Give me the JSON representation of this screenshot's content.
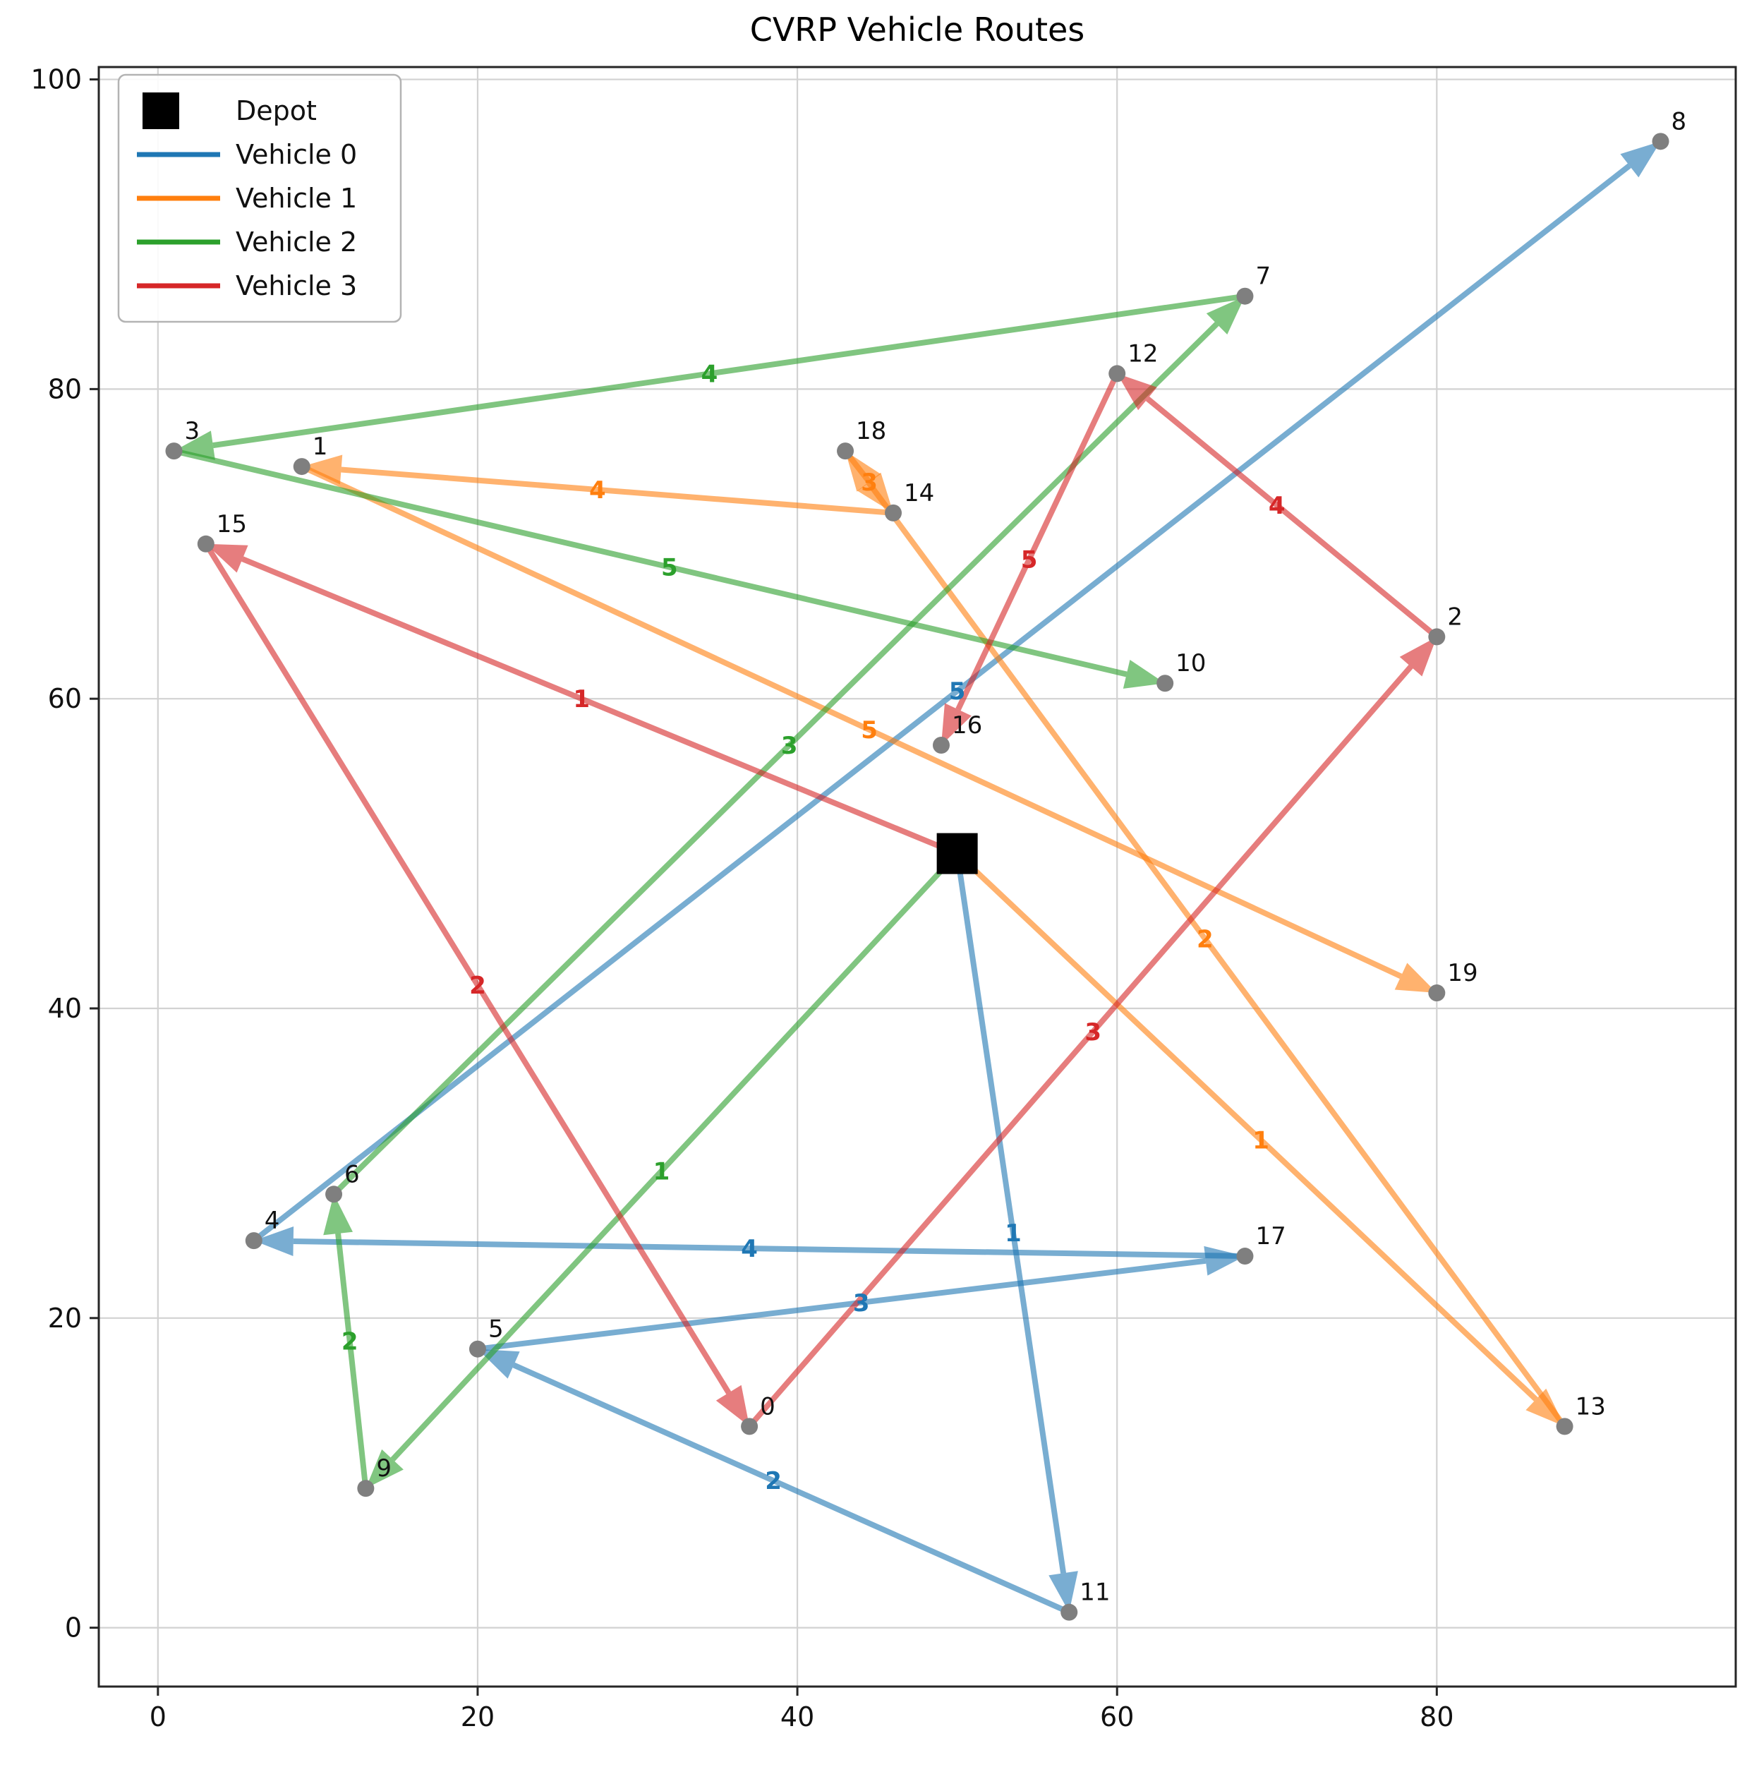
{
  "title": "CVRP Vehicle Routes",
  "legend": {
    "items": [
      {
        "label": "Depot",
        "color": "#000000",
        "marker": "square"
      },
      {
        "label": "Vehicle 0",
        "color": "#1f77b4",
        "marker": "line"
      },
      {
        "label": "Vehicle 1",
        "color": "#ff7f0e",
        "marker": "line"
      },
      {
        "label": "Vehicle 2",
        "color": "#2ca02c",
        "marker": "line"
      },
      {
        "label": "Vehicle 3",
        "color": "#d62728",
        "marker": "line"
      }
    ]
  },
  "chart_data": {
    "type": "scatter",
    "title": "CVRP Vehicle Routes",
    "xlabel": "",
    "ylabel": "",
    "xlim": [
      -3.7,
      98.7
    ],
    "ylim": [
      -3.8,
      100.8
    ],
    "x_ticks": [
      0,
      20,
      40,
      60,
      80
    ],
    "y_ticks": [
      0,
      20,
      40,
      60,
      80,
      100
    ],
    "grid": true,
    "grid_color": "#d2d2d2",
    "node_color": "#7f7f7f",
    "depot": {
      "label": "Depot",
      "x": 50,
      "y": 50,
      "color": "#000000"
    },
    "customers": [
      {
        "id": 0,
        "x": 37,
        "y": 13
      },
      {
        "id": 1,
        "x": 9,
        "y": 75
      },
      {
        "id": 2,
        "x": 80,
        "y": 64
      },
      {
        "id": 3,
        "x": 1,
        "y": 76
      },
      {
        "id": 4,
        "x": 6,
        "y": 25
      },
      {
        "id": 5,
        "x": 20,
        "y": 18
      },
      {
        "id": 6,
        "x": 11,
        "y": 28
      },
      {
        "id": 7,
        "x": 68,
        "y": 86
      },
      {
        "id": 8,
        "x": 94,
        "y": 96
      },
      {
        "id": 9,
        "x": 13,
        "y": 9
      },
      {
        "id": 10,
        "x": 63,
        "y": 61
      },
      {
        "id": 11,
        "x": 57,
        "y": 1
      },
      {
        "id": 12,
        "x": 60,
        "y": 81
      },
      {
        "id": 13,
        "x": 88,
        "y": 13
      },
      {
        "id": 14,
        "x": 46,
        "y": 72
      },
      {
        "id": 15,
        "x": 3,
        "y": 70
      },
      {
        "id": 16,
        "x": 49,
        "y": 57
      },
      {
        "id": 17,
        "x": 68,
        "y": 24
      },
      {
        "id": 18,
        "x": 43,
        "y": 76
      },
      {
        "id": 19,
        "x": 80,
        "y": 41
      }
    ],
    "routes": [
      {
        "name": "Vehicle 0",
        "color": "#1f77b4",
        "stops": [
          "depot",
          11,
          5,
          17,
          4,
          8
        ],
        "edge_labels": [
          1,
          2,
          3,
          4,
          5
        ]
      },
      {
        "name": "Vehicle 1",
        "color": "#ff7f0e",
        "stops": [
          "depot",
          13,
          18,
          14,
          1,
          19
        ],
        "edge_labels": [
          1,
          2,
          3,
          4,
          5
        ]
      },
      {
        "name": "Vehicle 2",
        "color": "#2ca02c",
        "stops": [
          "depot",
          9,
          6,
          7,
          3,
          10
        ],
        "edge_labels": [
          1,
          2,
          3,
          4,
          5
        ]
      },
      {
        "name": "Vehicle 3",
        "color": "#d62728",
        "stops": [
          "depot",
          15,
          0,
          2,
          12,
          16
        ],
        "edge_labels": [
          1,
          2,
          3,
          4,
          5
        ]
      }
    ],
    "legend_position": "upper left"
  }
}
